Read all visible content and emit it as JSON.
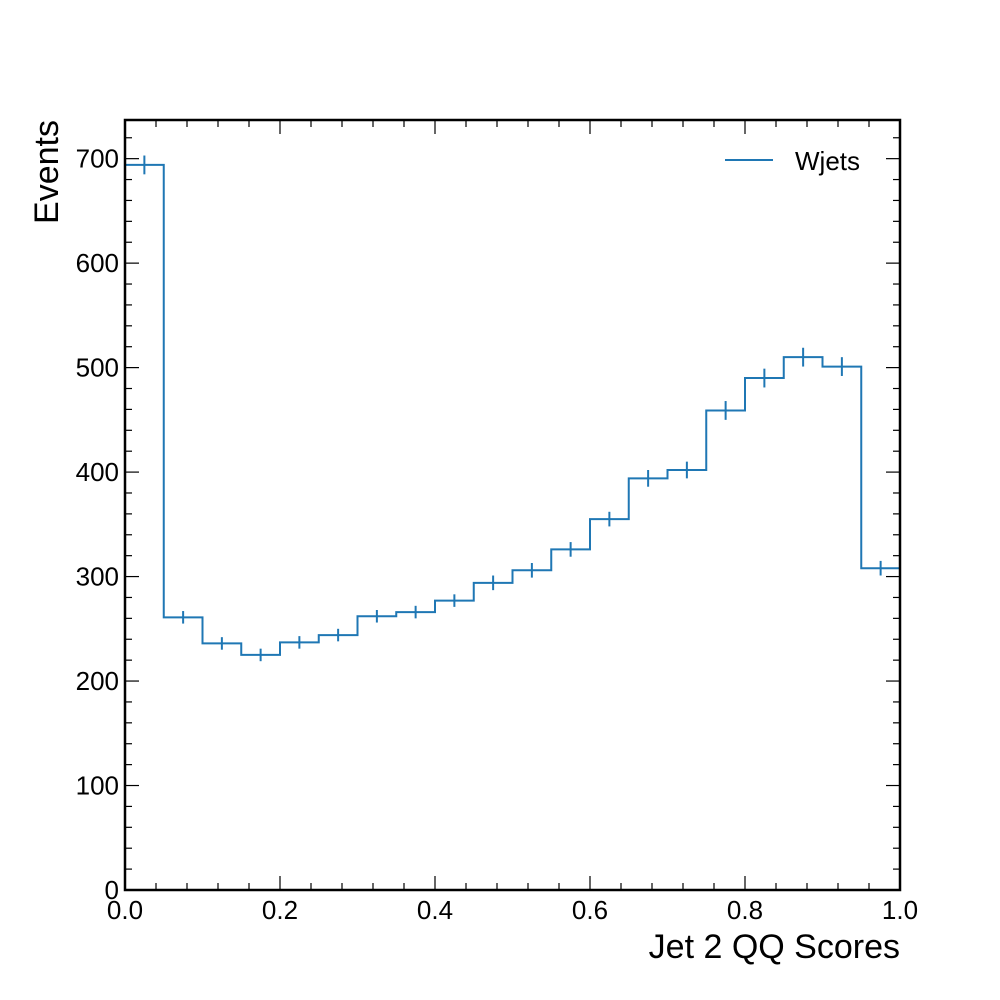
{
  "chart_data": {
    "type": "histogram",
    "xlabel": "Jet 2 QQ Scores",
    "ylabel": "Events",
    "xlim": [
      0.0,
      1.0
    ],
    "ylim": [
      0,
      737
    ],
    "x_ticks": [
      "0.0",
      "0.2",
      "0.4",
      "0.6",
      "0.8",
      "1.0"
    ],
    "y_ticks": [
      "0",
      "100",
      "200",
      "300",
      "400",
      "500",
      "600",
      "700"
    ],
    "bin_edges": [
      0.0,
      0.05,
      0.1,
      0.15,
      0.2,
      0.25,
      0.3,
      0.35,
      0.4,
      0.45,
      0.5,
      0.55,
      0.6,
      0.65,
      0.7,
      0.75,
      0.8,
      0.85,
      0.9,
      0.95,
      1.0
    ],
    "series": [
      {
        "name": "Wjets",
        "color": "#1f77b4",
        "values": [
          694,
          261,
          236,
          225,
          237,
          244,
          262,
          266,
          277,
          294,
          306,
          326,
          355,
          394,
          402,
          459,
          490,
          510,
          501,
          308
        ],
        "errors": [
          9,
          6,
          6,
          6,
          6,
          6,
          6,
          6,
          6,
          7,
          7,
          7,
          7,
          8,
          8,
          9,
          9,
          9,
          9,
          7
        ]
      }
    ],
    "legend_position": "top-right",
    "grid": false
  }
}
